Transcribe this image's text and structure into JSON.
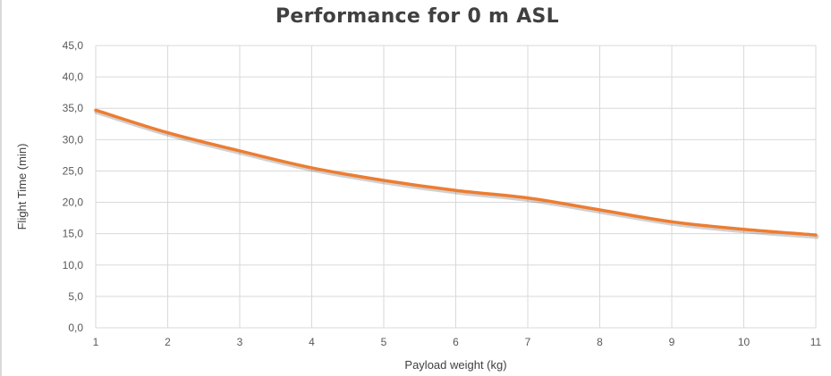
{
  "chart_data": {
    "type": "line",
    "title": "Performance for 0 m ASL",
    "xlabel": "Payload weight (kg)",
    "ylabel": "Flight Time (min)",
    "x": [
      1,
      2,
      3,
      4,
      5,
      6,
      7,
      8,
      9,
      10,
      11
    ],
    "x_tick_labels": [
      "1",
      "2",
      "3",
      "4",
      "5",
      "6",
      "7",
      "8",
      "9",
      "10",
      "11"
    ],
    "y_tick_labels": [
      "0,0",
      "5,0",
      "10,0",
      "15,0",
      "20,0",
      "25,0",
      "30,0",
      "35,0",
      "40,0",
      "45,0"
    ],
    "xlim": [
      1,
      11
    ],
    "ylim": [
      0,
      45
    ],
    "grid": true,
    "legend": "none",
    "series": [
      {
        "color": "#ed7d31",
        "smooth": true,
        "values": [
          34.7,
          31.1,
          28.2,
          25.5,
          23.5,
          21.9,
          20.7,
          18.8,
          16.9,
          15.7,
          14.8
        ]
      }
    ]
  }
}
